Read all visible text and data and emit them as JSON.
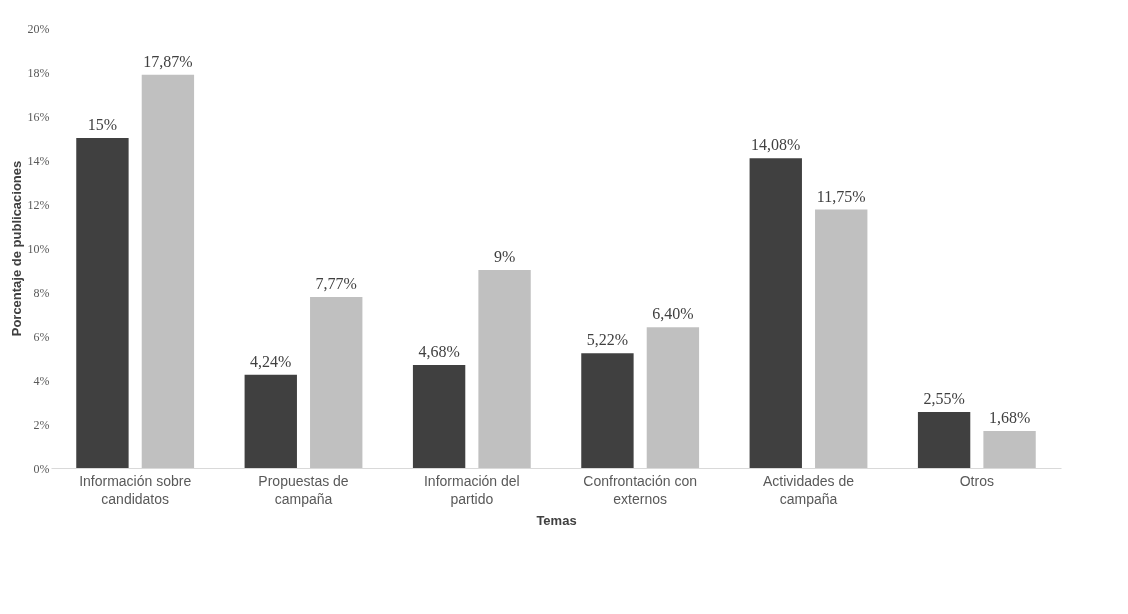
{
  "chart_data": {
    "type": "bar",
    "xlabel": "Temas",
    "ylabel": "Porcentaje de publicaciones",
    "categories": [
      "Información sobre candidatos",
      "Propuestas de campaña",
      "Información del partido",
      "Confrontación con externos",
      "Actividades de campaña",
      "Otros"
    ],
    "series": [
      {
        "color": "#404040",
        "values": [
          15,
          4.24,
          4.68,
          5.22,
          14.08,
          2.55
        ],
        "value_labels": [
          "15%",
          "4,24%",
          "4,68%",
          "5,22%",
          "14,08%",
          "2,55%"
        ]
      },
      {
        "color": "#c0c0c0",
        "values": [
          17.87,
          7.77,
          9,
          6.4,
          11.75,
          1.68
        ],
        "value_labels": [
          "17,87%",
          "7,77%",
          "9%",
          "6,40%",
          "11,75%",
          "1,68%"
        ]
      }
    ],
    "ylim": [
      0,
      20
    ],
    "yticks": [
      {
        "value": 0,
        "label": "0%"
      },
      {
        "value": 2,
        "label": "2%"
      },
      {
        "value": 4,
        "label": "4%"
      },
      {
        "value": 6,
        "label": "6%"
      },
      {
        "value": 8,
        "label": "8%"
      },
      {
        "value": 10,
        "label": "10%"
      },
      {
        "value": 12,
        "label": "12%"
      },
      {
        "value": 14,
        "label": "14%"
      },
      {
        "value": 16,
        "label": "16%"
      },
      {
        "value": 18,
        "label": "18%"
      },
      {
        "value": 20,
        "label": "20%"
      }
    ],
    "grid": false,
    "legend": false
  }
}
